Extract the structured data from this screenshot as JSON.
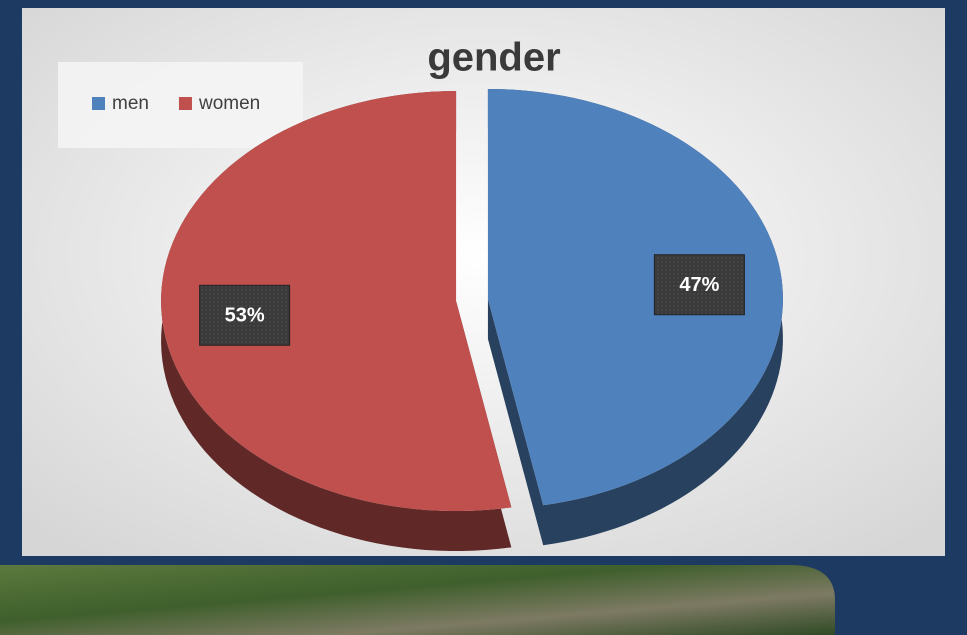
{
  "chart_data": {
    "type": "pie",
    "title": "gender",
    "categories": [
      "men",
      "women"
    ],
    "values": [
      47,
      53
    ],
    "value_labels": [
      "47%",
      "53%"
    ],
    "colors": [
      "#4f81bd",
      "#c0504d"
    ],
    "legend": "top-left"
  }
}
